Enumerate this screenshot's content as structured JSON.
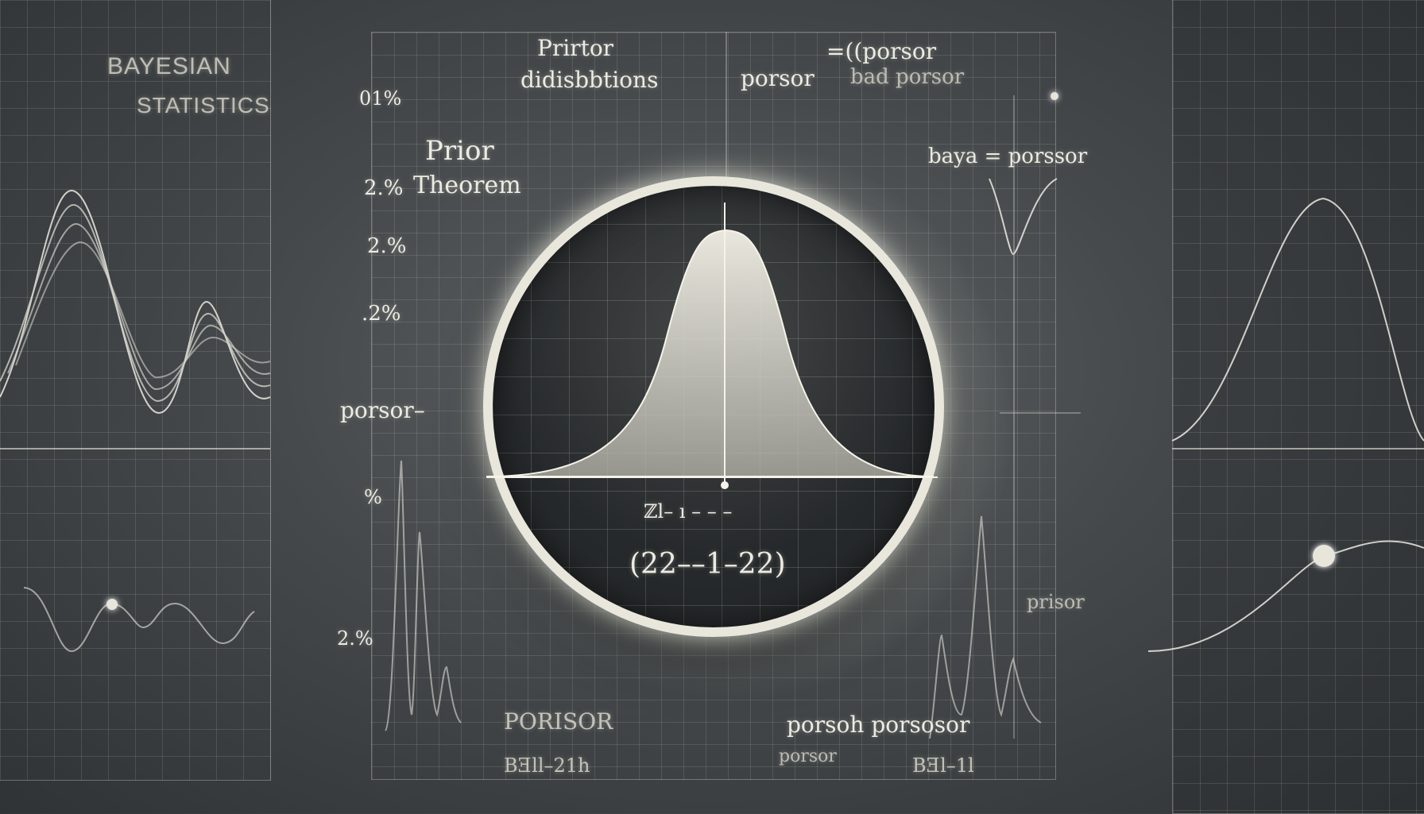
{
  "colors": {
    "background": "#45494b",
    "line": "#ecebe2",
    "lens_ring": "#e9e7dc"
  },
  "left_panel": {
    "title_line1": "BAYESIAN",
    "title_line2": "STATISTICS"
  },
  "center_top": {
    "prior_label": "Prirtor",
    "distributions_label": "didisbbtions",
    "porsor_label_1": "=((porsor",
    "porsor_label_2": "porsor",
    "bad_porsor": "bad porsor"
  },
  "y_labels": {
    "top": "01%",
    "prior_theorem_line1": "Prior",
    "prior_theorem_line2": "Theorem",
    "pct_a": "2.%",
    "pct_b": "2.%",
    "pct_c": ".2%",
    "porsor": "porsor–",
    "pct_d": "%",
    "pct_e": "2.%"
  },
  "lens": {
    "formula_top": "ℤl–  ı  – – –",
    "formula_main": "(22––1–22)"
  },
  "right_annotations": {
    "bayes_label": "baya = porssor",
    "prisor": "prisor"
  },
  "bottom_labels": {
    "porisor": "PORISOR",
    "bell_left": "BƎll–21h",
    "porsor_mixed": "porsoh porsosor",
    "porsor_small": "porsor",
    "bell_right": "BƎl–1l"
  }
}
